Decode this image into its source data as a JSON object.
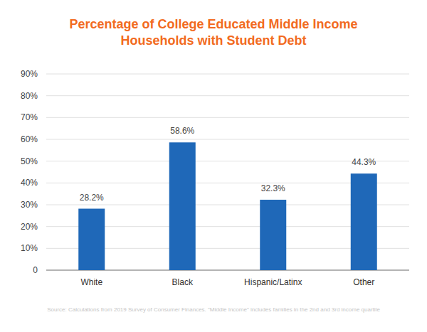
{
  "chart_data": {
    "type": "bar",
    "title": "Percentage of College Educated Middle Income Households with Student Debt",
    "categories": [
      "White",
      "Black",
      "Hispanic/Latinx",
      "Other"
    ],
    "values": [
      28.2,
      58.6,
      32.3,
      44.3
    ],
    "value_labels": [
      "28.2%",
      "58.6%",
      "32.3%",
      "44.3%"
    ],
    "color": "#1f68b8",
    "ylim": [
      0,
      90
    ],
    "yticks": [
      0,
      {
        "value": 10,
        "label": "10%"
      },
      {
        "value": 20,
        "label": "20%"
      },
      {
        "value": 30,
        "label": "30%"
      },
      {
        "value": 40,
        "label": "40%"
      },
      {
        "value": 50,
        "label": "50%"
      },
      {
        "value": 60,
        "label": "60%"
      },
      {
        "value": 70,
        "label": "70%"
      },
      {
        "value": 80,
        "label": "80%"
      },
      {
        "value": 90,
        "label": "90%"
      }
    ],
    "grid": true,
    "data_labels": true,
    "source": "Source: Calculations from 2019 Survey of Consumer Finances. \"Middle Income\" includes families in the 2nd and 3rd income quartile"
  }
}
